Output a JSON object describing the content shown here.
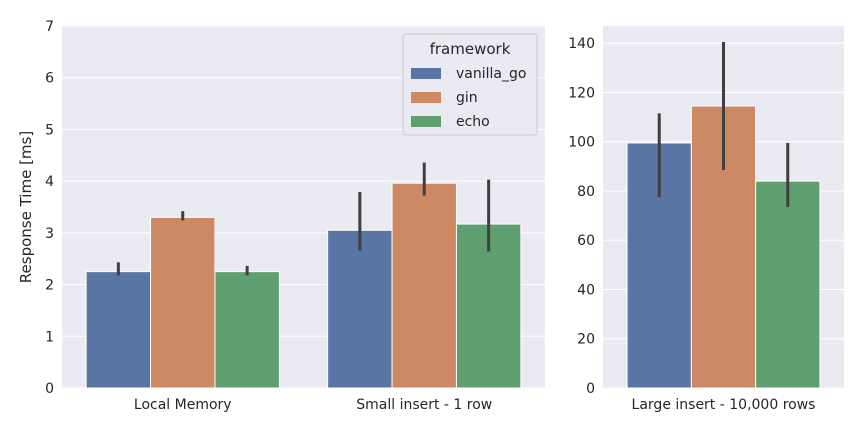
{
  "chart_data": [
    {
      "type": "bar",
      "ylabel": "Response Time [ms]",
      "ylim": [
        0,
        7
      ],
      "yticks": [
        0,
        1,
        2,
        3,
        4,
        5,
        6,
        7
      ],
      "grid": true,
      "categories": [
        "Local Memory",
        "Small insert - 1 row"
      ],
      "legend": {
        "title": "framework",
        "placement": "top-right"
      },
      "series": [
        {
          "name": "vanilla_go",
          "color": "#5875a4",
          "values": [
            2.25,
            3.05
          ],
          "ci_low": [
            2.18,
            2.66
          ],
          "ci_high": [
            2.43,
            3.79
          ]
        },
        {
          "name": "gin",
          "color": "#cc8963",
          "values": [
            3.3,
            3.96
          ],
          "ci_low": [
            3.24,
            3.72
          ],
          "ci_high": [
            3.42,
            4.36
          ]
        },
        {
          "name": "echo",
          "color": "#5f9e6e",
          "values": [
            2.25,
            3.17
          ],
          "ci_low": [
            2.18,
            2.64
          ],
          "ci_high": [
            2.36,
            4.03
          ]
        }
      ]
    },
    {
      "type": "bar",
      "ylabel": "",
      "ylim": [
        0,
        147
      ],
      "yticks": [
        0,
        20,
        40,
        60,
        80,
        100,
        120,
        140
      ],
      "grid": true,
      "categories": [
        "Large insert - 10,000 rows"
      ],
      "series": [
        {
          "name": "vanilla_go",
          "color": "#5875a4",
          "values": [
            99.5
          ],
          "ci_low": [
            77.5
          ],
          "ci_high": [
            111.5
          ]
        },
        {
          "name": "gin",
          "color": "#cc8963",
          "values": [
            114.5
          ],
          "ci_low": [
            88.5
          ],
          "ci_high": [
            140.5
          ]
        },
        {
          "name": "echo",
          "color": "#5f9e6e",
          "values": [
            84
          ],
          "ci_low": [
            73.5
          ],
          "ci_high": [
            99.5
          ]
        }
      ]
    }
  ]
}
